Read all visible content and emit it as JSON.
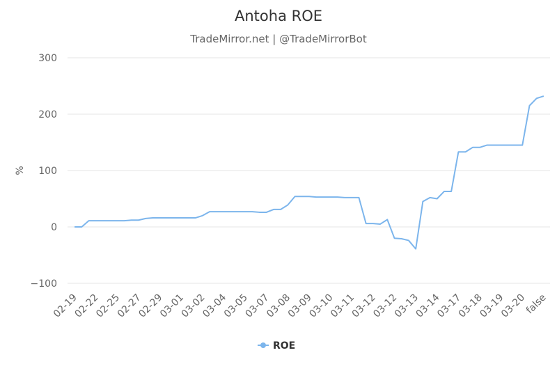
{
  "chart_data": {
    "type": "line",
    "title": "Antoha ROE",
    "subtitle": "TradeMirror.net | @TradeMirrorBot",
    "y_label": "%",
    "categories": [
      "02-19",
      null,
      null,
      "02-22",
      null,
      null,
      "02-25",
      null,
      null,
      "02-27",
      null,
      null,
      "02-29",
      null,
      null,
      "03-01",
      null,
      null,
      "03-02",
      null,
      null,
      "03-04",
      null,
      null,
      "03-05",
      null,
      null,
      "03-07",
      null,
      null,
      "03-08",
      null,
      null,
      "03-09",
      null,
      null,
      "03-10",
      null,
      null,
      "03-11",
      null,
      null,
      "03-12",
      null,
      null,
      "03-12",
      null,
      null,
      "03-13",
      null,
      null,
      "03-14",
      null,
      null,
      "03-17",
      null,
      null,
      "03-18",
      null,
      null,
      "03-19",
      null,
      null,
      "03-20",
      null,
      null,
      "false"
    ],
    "series": [
      {
        "name": "ROE",
        "color": "#7cb5ec",
        "values": [
          0,
          0,
          11,
          11,
          11,
          11,
          11,
          11,
          12,
          12,
          15,
          16,
          16,
          16,
          16,
          16,
          16,
          16,
          20,
          27,
          27,
          27,
          27,
          27,
          27,
          27,
          26,
          26,
          31,
          31,
          39,
          54,
          54,
          54,
          53,
          53,
          53,
          53,
          52,
          52,
          52,
          6,
          6,
          5,
          13,
          -20,
          -21,
          -24,
          -39,
          45,
          52,
          50,
          63,
          63,
          133,
          133,
          141,
          141,
          145,
          145,
          145,
          145,
          145,
          145,
          215,
          228,
          232
        ]
      }
    ],
    "ylim": [
      -100,
      300
    ],
    "yticks": [
      {
        "value": -100,
        "label": "−100"
      },
      0,
      100,
      200,
      300
    ],
    "grid": true
  }
}
